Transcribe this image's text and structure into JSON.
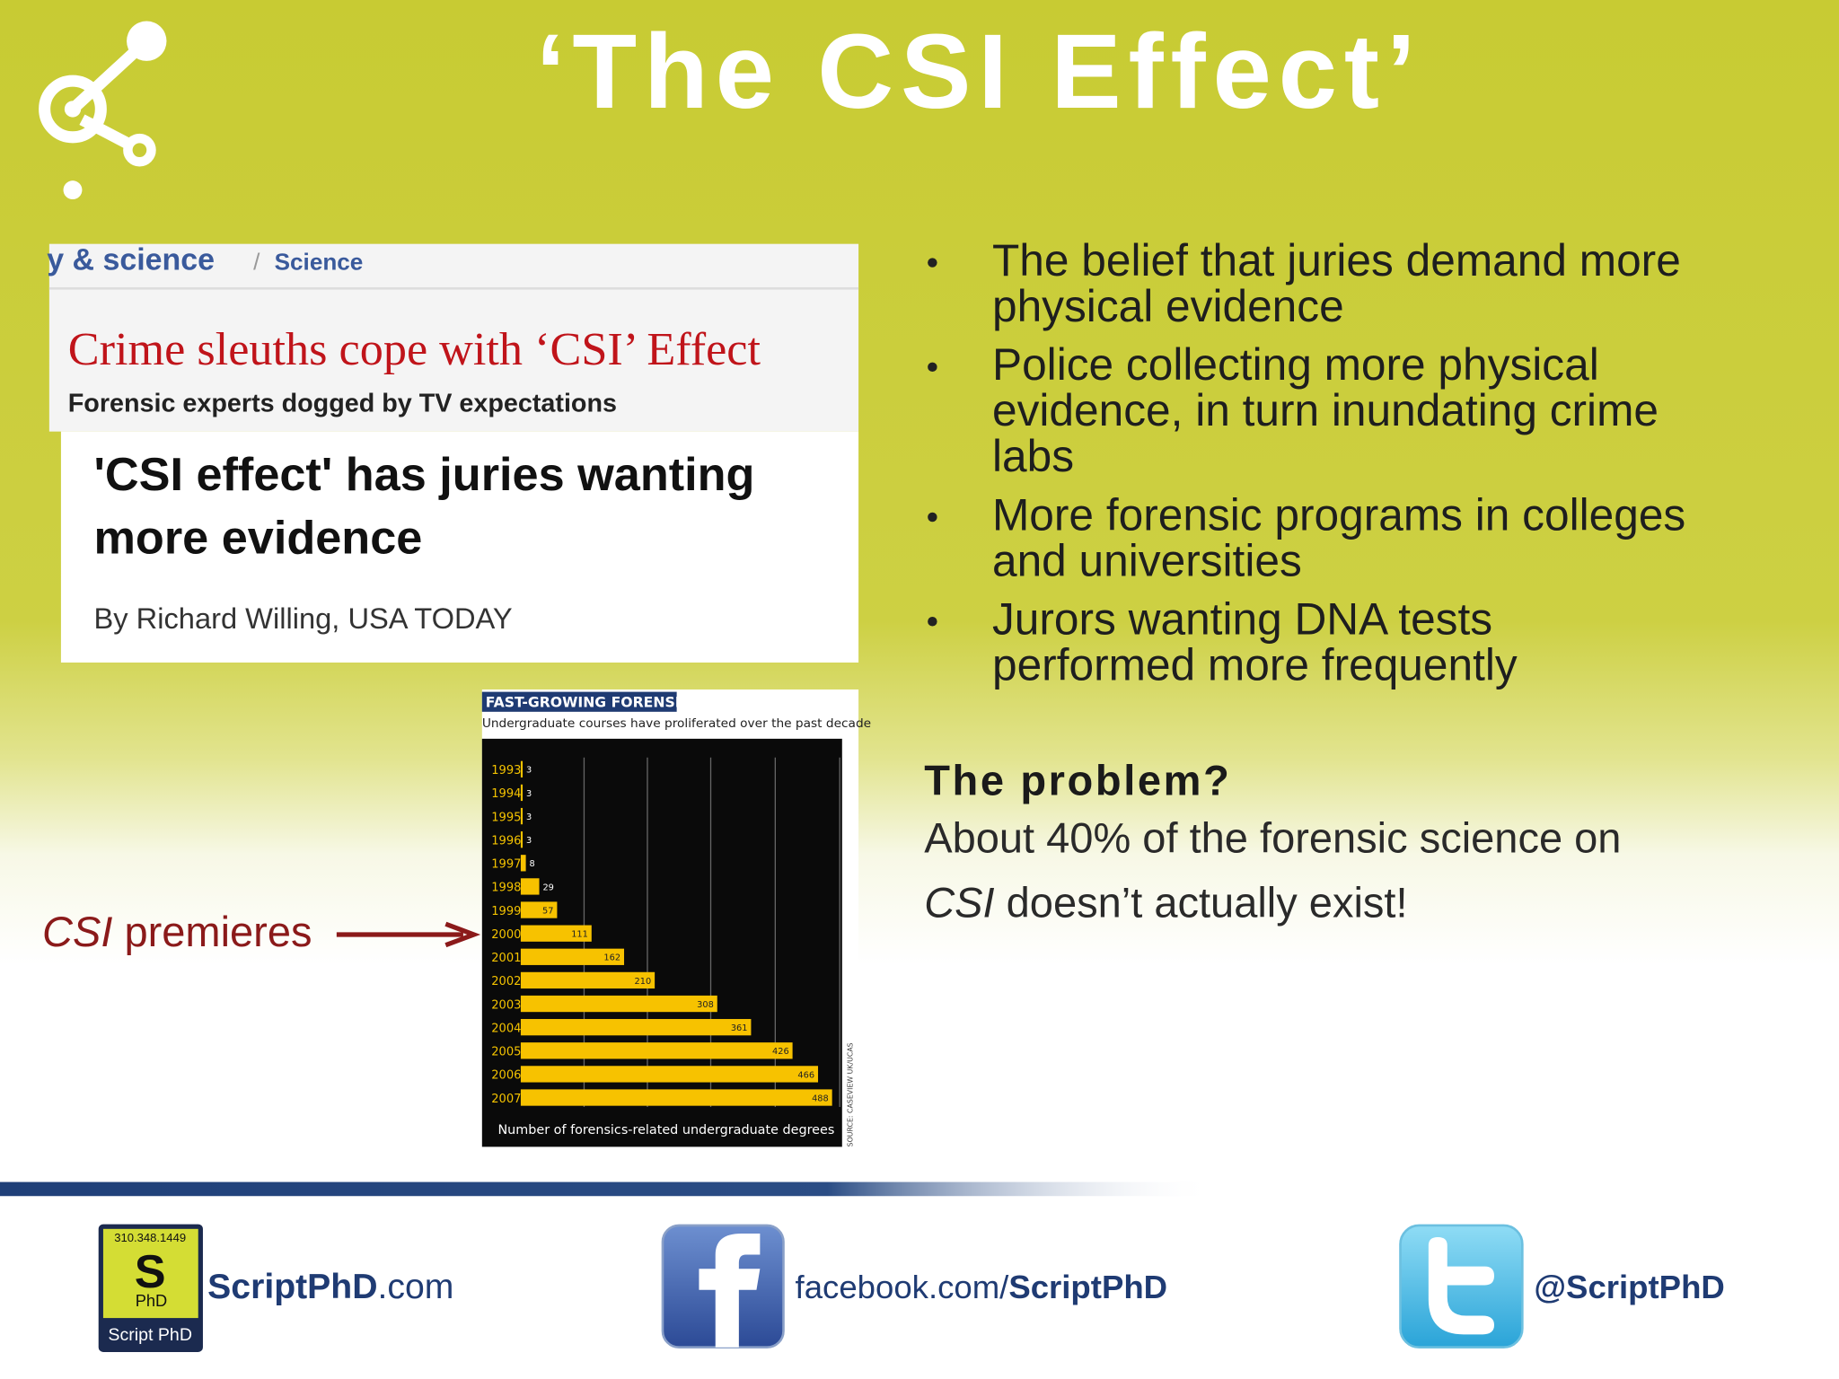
{
  "slide": {
    "title": "‘The CSI Effect’",
    "clipping": {
      "section": "y & science",
      "separator": "/",
      "subsection": "Science",
      "headline": "Crime sleuths cope with ‘CSI’ Effect",
      "subhead": "Forensic experts dogged by TV expectations",
      "headline2_lines": [
        "'CSI effect' has juries wanting",
        "more evidence"
      ],
      "byline": "By Richard Willing, USA TODAY"
    },
    "annotation": {
      "italic": "CSI",
      "text": " premieres"
    },
    "bullets": [
      [
        "The belief that juries demand more",
        "physical evidence"
      ],
      [
        "Police collecting more physical",
        "evidence, in turn inundating crime",
        "labs"
      ],
      [
        "More forensic programs in colleges",
        "and universities"
      ],
      [
        "Jurors wanting DNA tests",
        "performed more frequently"
      ]
    ],
    "problem": {
      "heading": "The problem?",
      "line1": "About 40% of the forensic science on",
      "line2_italic": "CSI",
      "line2_rest": " doesn’t actually exist!"
    },
    "footer": {
      "phone": "310.348.1449",
      "logo_letter": "S",
      "logo_sub": "PhD",
      "logo_name": "Script PhD",
      "site_bold": "ScriptPhD",
      "site_rest": ".com",
      "facebook_rest": "facebook.com/",
      "facebook_bold": "ScriptPhD",
      "twitter": "@ScriptPhD"
    }
  },
  "chart_data": {
    "type": "bar",
    "orientation": "horizontal",
    "title": "FAST-GROWING FORENSICS",
    "subtitle": "Undergraduate courses have proliferated over the past decade",
    "categories": [
      "1993",
      "1994",
      "1995",
      "1996",
      "1997",
      "1998",
      "1999",
      "2000",
      "2001",
      "2002",
      "2003",
      "2004",
      "2005",
      "2006",
      "2007"
    ],
    "values": [
      3,
      3,
      3,
      3,
      8,
      29,
      57,
      111,
      162,
      210,
      308,
      361,
      426,
      466,
      488
    ],
    "color": "#f7c200",
    "xlabel": "Number of forensics-related undergraduate degrees",
    "source": "SOURCE: CASEVIEW UK/UCAS",
    "xlim": [
      0,
      500
    ]
  }
}
